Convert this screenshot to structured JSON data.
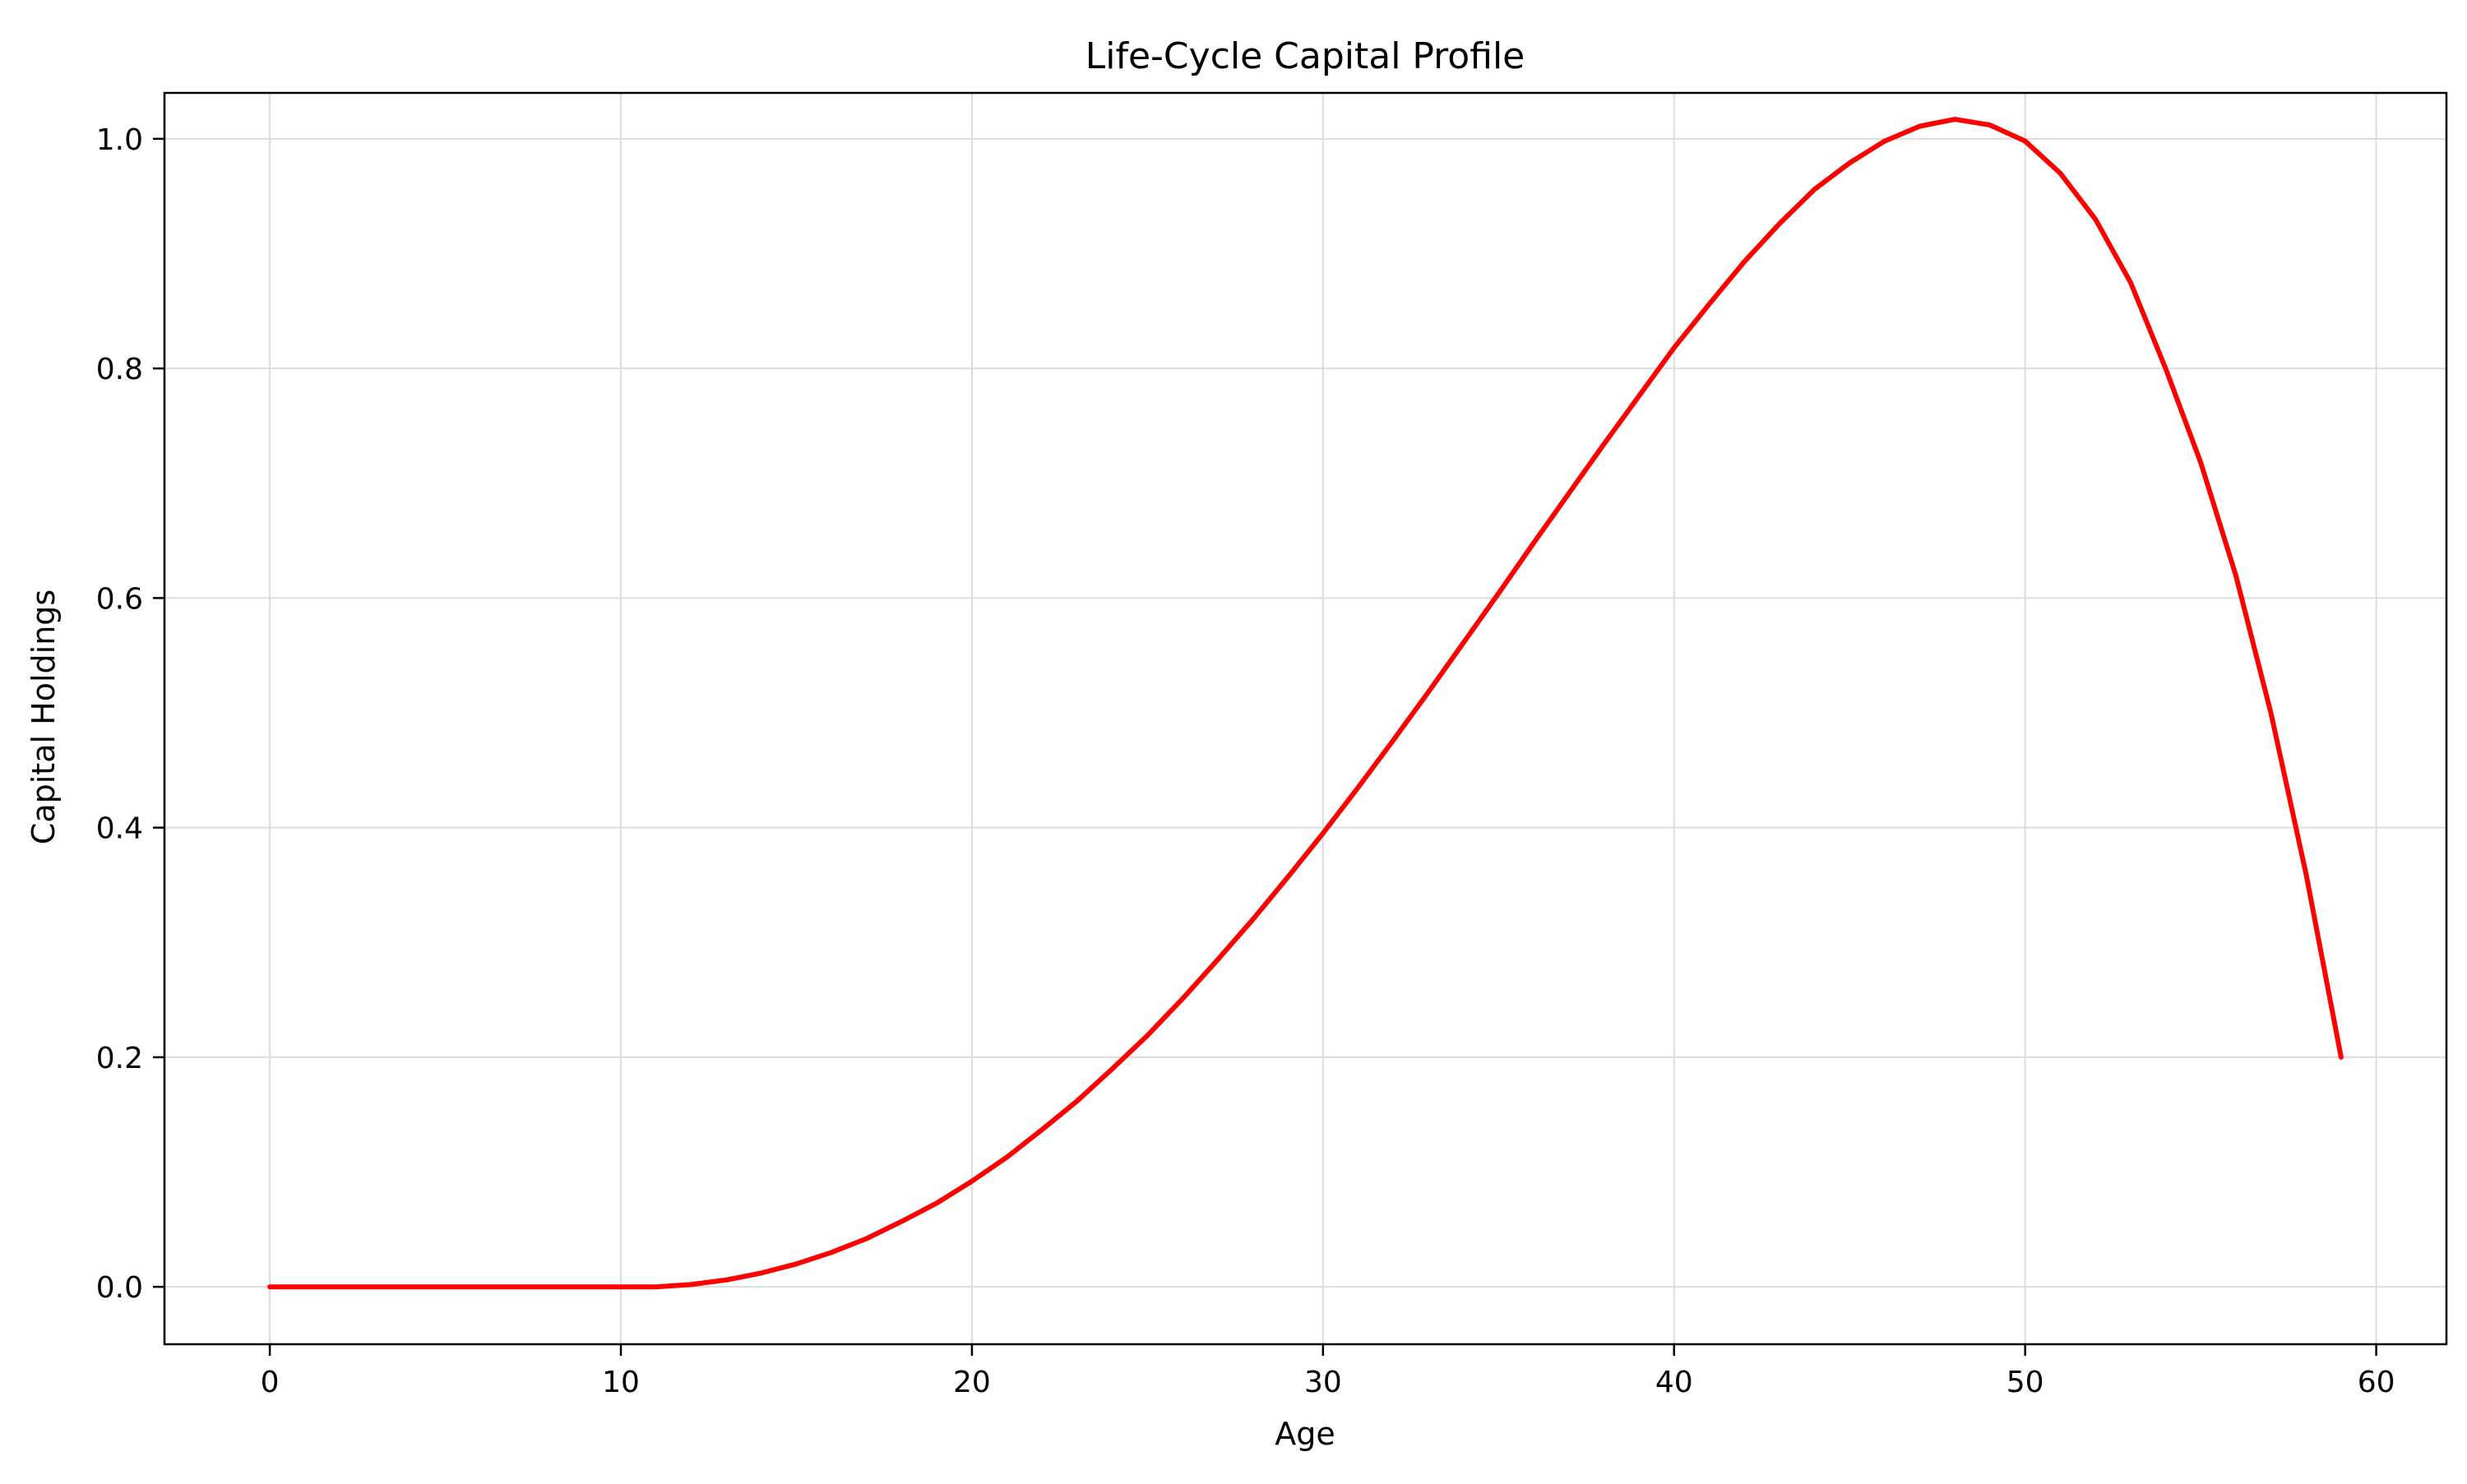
{
  "chart_data": {
    "type": "line",
    "title": "Life-Cycle Capital Profile",
    "xlabel": "Age",
    "ylabel": "Capital Holdings",
    "xlim": [
      -3,
      62
    ],
    "ylim": [
      -0.05,
      1.04
    ],
    "xticks": [
      0,
      10,
      20,
      30,
      40,
      50,
      60
    ],
    "xtick_labels": [
      "0",
      "10",
      "20",
      "30",
      "40",
      "50",
      "60"
    ],
    "yticks": [
      0.0,
      0.2,
      0.4,
      0.6,
      0.8,
      1.0
    ],
    "ytick_labels": [
      "0.0",
      "0.2",
      "0.4",
      "0.6",
      "0.8",
      "1.0"
    ],
    "grid": true,
    "legend": "none",
    "series": [
      {
        "color": "#ff0000",
        "x": [
          0,
          1,
          2,
          3,
          4,
          5,
          6,
          7,
          8,
          9,
          10,
          11,
          12,
          13,
          14,
          15,
          16,
          17,
          18,
          19,
          20,
          21,
          22,
          23,
          24,
          25,
          26,
          27,
          28,
          29,
          30,
          31,
          32,
          33,
          34,
          35,
          36,
          37,
          38,
          39,
          40,
          41,
          42,
          43,
          44,
          45,
          46,
          47,
          48,
          49,
          50,
          51,
          52,
          53,
          54,
          55,
          56,
          57,
          58,
          59
        ],
        "y": [
          0,
          0,
          0,
          0,
          0,
          0,
          0,
          0,
          0,
          0,
          0,
          0,
          0.002,
          0.006,
          0.012,
          0.02,
          0.03,
          0.042,
          0.057,
          0.073,
          0.092,
          0.113,
          0.137,
          0.162,
          0.19,
          0.219,
          0.251,
          0.285,
          0.32,
          0.357,
          0.395,
          0.435,
          0.476,
          0.518,
          0.561,
          0.604,
          0.648,
          0.691,
          0.734,
          0.776,
          0.818,
          0.856,
          0.893,
          0.926,
          0.956,
          0.979,
          0.998,
          1.011,
          1.017,
          1.012,
          0.998,
          0.97,
          0.93,
          0.875,
          0.8,
          0.718,
          0.62,
          0.5,
          0.36,
          0.2
        ]
      }
    ]
  }
}
